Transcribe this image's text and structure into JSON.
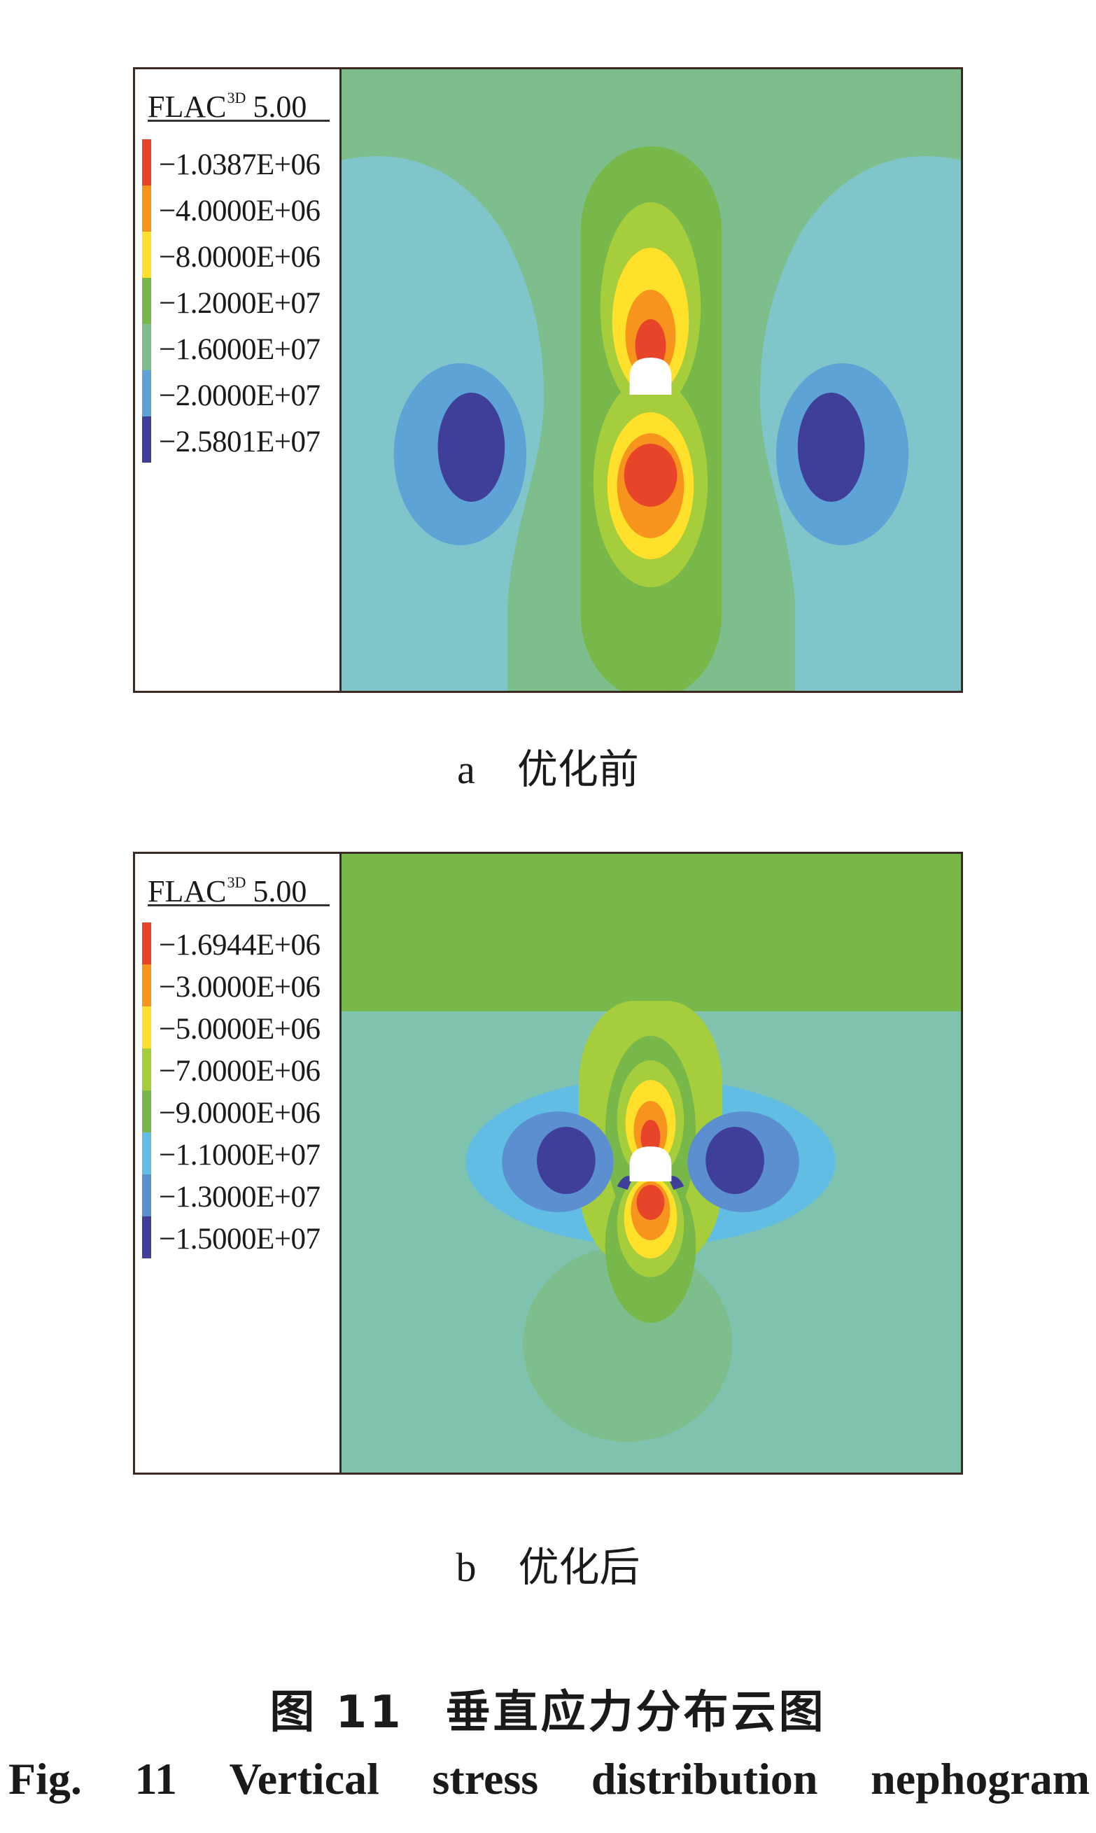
{
  "colors": {
    "outer": "#80c5c9",
    "green_light": "#7ebd8c",
    "green": "#78b84a",
    "green_yellow": "#a5cd3c",
    "yellow": "#ffe02b",
    "orange": "#f7941d",
    "red": "#e8442a",
    "blue_light": "#5ea3d6",
    "blue_mid": "#5b8fd0",
    "blue_dark": "#3f3f9a",
    "sky": "#62bde4",
    "opening": "#ffffff"
  },
  "panel_a": {
    "legend_title": "FLAC",
    "legend_title_sup": "3D",
    "legend_title_version": "5.00",
    "legend": [
      {
        "label": "−1.0387E+06",
        "color": "#e8442a"
      },
      {
        "label": "−4.0000E+06",
        "color": "#f7941d"
      },
      {
        "label": "−8.0000E+06",
        "color": "#ffe02b"
      },
      {
        "label": "−1.2000E+07",
        "color": "#78b84a"
      },
      {
        "label": "−1.6000E+07",
        "color": "#7ebd8c"
      },
      {
        "label": "−2.0000E+07",
        "color": "#5ea3d6"
      },
      {
        "label": "−2.5801E+07",
        "color": "#3f3f9a"
      }
    ],
    "caption_letter": "a",
    "caption_text": "优化前"
  },
  "panel_b": {
    "legend_title": "FLAC",
    "legend_title_sup": "3D",
    "legend_title_version": "5.00",
    "legend": [
      {
        "label": "−1.6944E+06",
        "color": "#e8442a"
      },
      {
        "label": "−3.0000E+06",
        "color": "#f7941d"
      },
      {
        "label": "−5.0000E+06",
        "color": "#ffe02b"
      },
      {
        "label": "−7.0000E+06",
        "color": "#a5cd3c"
      },
      {
        "label": "−9.0000E+06",
        "color": "#78b84a"
      },
      {
        "label": "−1.1000E+07",
        "color": "#62bde4"
      },
      {
        "label": "−1.3000E+07",
        "color": "#5b8fd0"
      },
      {
        "label": "−1.5000E+07",
        "color": "#3f3f9a"
      }
    ],
    "caption_letter": "b",
    "caption_text": "优化后"
  },
  "figure": {
    "title_cn_label": "图 11",
    "title_cn_text": "垂直应力分布云图",
    "title_en_words": [
      "Fig.",
      "11",
      "Vertical",
      "stress",
      "distribution",
      "nephogram"
    ]
  }
}
